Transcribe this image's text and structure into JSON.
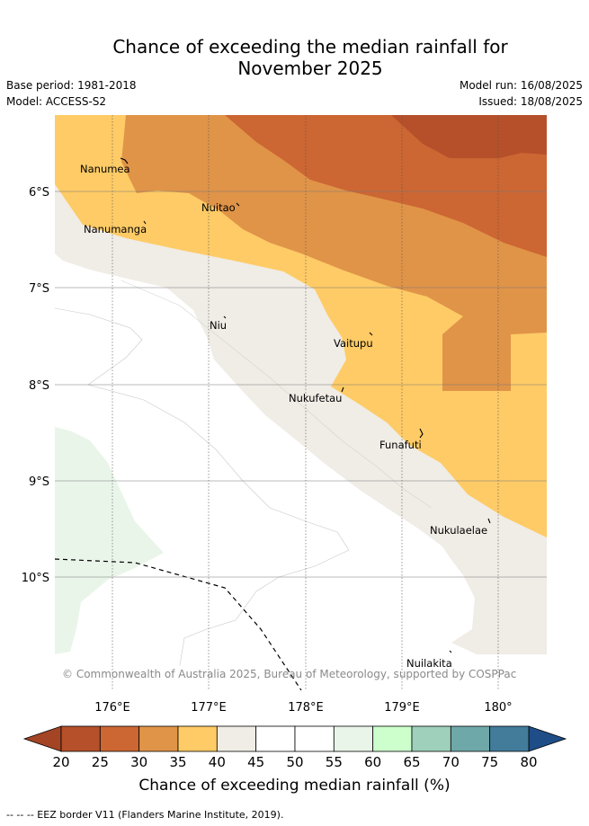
{
  "header": {
    "title_line1": "Chance of exceeding the median rainfall for",
    "title_line2": "November 2025",
    "base_period": "Base period: 1981-2018",
    "model": "Model: ACCESS-S2",
    "model_run": "Model run: 16/08/2025",
    "issued": "Issued: 18/08/2025"
  },
  "map": {
    "lon_labels": [
      "176°E",
      "177°E",
      "178°E",
      "179°E",
      "180°"
    ],
    "lat_labels": [
      "6°S",
      "7°S",
      "8°S",
      "9°S",
      "10°S"
    ],
    "places": [
      {
        "name": "Nanumea"
      },
      {
        "name": "Nuitao"
      },
      {
        "name": "Nanumanga"
      },
      {
        "name": "Niu"
      },
      {
        "name": "Vaitupu"
      },
      {
        "name": "Nukufetau"
      },
      {
        "name": "Funafuti"
      },
      {
        "name": "Nukulaelae"
      },
      {
        "name": "Nuilakita"
      }
    ],
    "copyright": "© Commonwealth of Australia 2025, Bureau of Meteorology, supported by COSPPac"
  },
  "colorbar": {
    "ticks": [
      "20",
      "25",
      "30",
      "35",
      "40",
      "45",
      "50",
      "55",
      "60",
      "65",
      "70",
      "75",
      "80"
    ],
    "colors": [
      "#b5502a",
      "#cc6633",
      "#e09448",
      "#fecb66",
      "#f0ece6",
      "#ffffff",
      "#ffffff",
      "#eaf5ea",
      "#ccffcc",
      "#9ed0bb",
      "#6fa8a8",
      "#437b9b"
    ],
    "low_color": "#a34424",
    "high_color": "#1e4d87",
    "label": "Chance of exceeding median rainfall (%)"
  },
  "footnote": "--  --  -- EEZ border V11 (Flanders Marine Institute, 2019)."
}
